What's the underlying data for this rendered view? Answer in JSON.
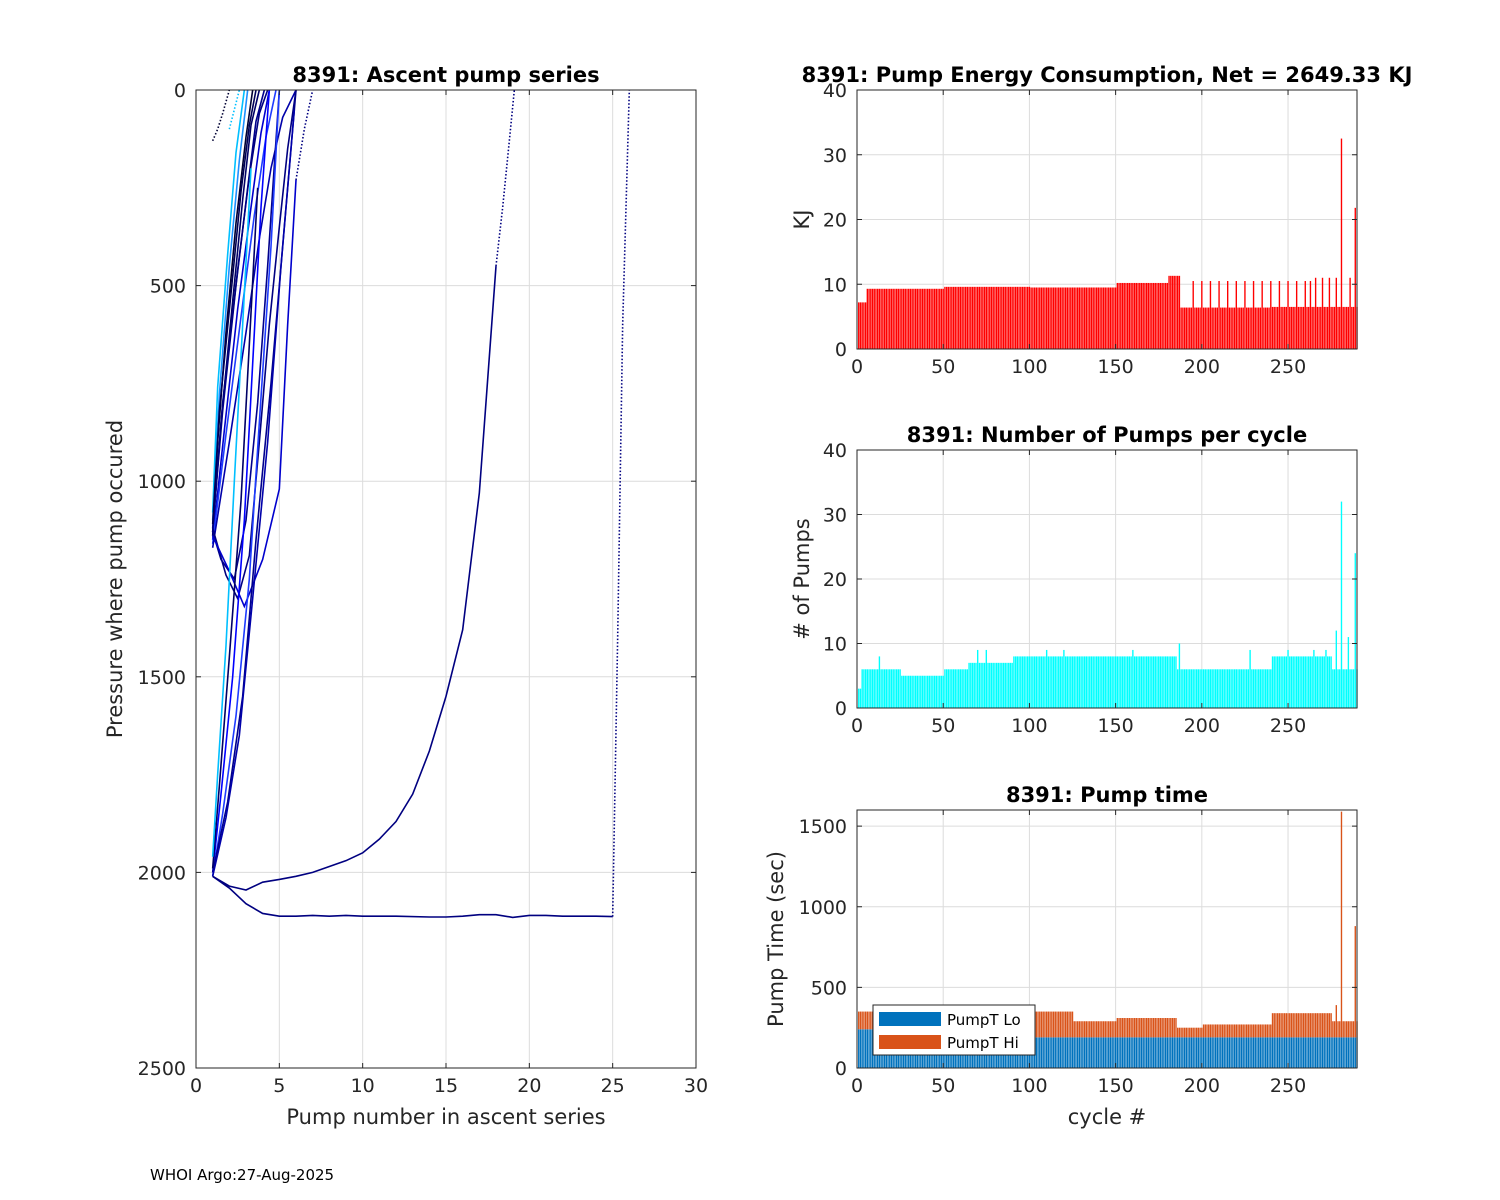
{
  "footer": "WHOI Argo:27-Aug-2025",
  "colors": {
    "energy_bar": "#ff0000",
    "pumps_bar": "#00ffff",
    "pumpt_lo": "#0072bd",
    "pumpt_hi": "#d95319",
    "grid": "#dcdcdc"
  },
  "chart_data": [
    {
      "id": "ascent",
      "type": "line",
      "title": "8391: Ascent pump series",
      "xlabel": "Pump number in ascent series",
      "ylabel": "Pressure where pump occured",
      "xlim": [
        0,
        30
      ],
      "ylim": [
        0,
        2500
      ],
      "y_reversed": true,
      "xticks": [
        0,
        5,
        10,
        15,
        20,
        25,
        30
      ],
      "yticks": [
        0,
        500,
        1000,
        1500,
        2000,
        2500
      ],
      "grid": true,
      "series": [
        {
          "name": "cluster-1",
          "color": "#000033",
          "x": [
            1,
            1.3,
            1.8,
            2.4,
            3.0,
            3.4
          ],
          "y": [
            1140,
            900,
            620,
            340,
            120,
            0
          ]
        },
        {
          "name": "cluster-2",
          "color": "#000066",
          "x": [
            1,
            1.5,
            2.2,
            2.8,
            3.3,
            3.8
          ],
          "y": [
            1130,
            850,
            540,
            280,
            90,
            0
          ]
        },
        {
          "name": "cluster-3",
          "color": "#00008b",
          "x": [
            1,
            1.6,
            2.4,
            3.1,
            3.6,
            4.1
          ],
          "y": [
            1120,
            820,
            500,
            250,
            80,
            0
          ]
        },
        {
          "name": "cluster-4",
          "color": "#0000cd",
          "x": [
            1,
            1.7,
            2.5,
            3.3,
            3.9,
            4.4
          ],
          "y": [
            1150,
            870,
            560,
            300,
            110,
            0
          ]
        },
        {
          "name": "cluster-5",
          "color": "#1e3cff",
          "x": [
            1,
            1.8,
            2.7,
            3.5,
            4.2,
            4.8
          ],
          "y": [
            1160,
            880,
            580,
            320,
            120,
            0
          ]
        },
        {
          "name": "cluster-6",
          "color": "#1e90ff",
          "x": [
            1,
            1.4,
            2.0,
            2.6,
            3.1
          ],
          "y": [
            1100,
            780,
            450,
            180,
            0
          ]
        },
        {
          "name": "cluster-7",
          "color": "#00bfff",
          "x": [
            1,
            1.3,
            1.9,
            2.4,
            2.9
          ],
          "y": [
            1080,
            760,
            420,
            160,
            0
          ]
        },
        {
          "name": "cluster-8",
          "color": "#0000aa",
          "x": [
            1,
            2.0,
            3.0,
            3.8,
            4.5,
            5.2,
            6.0
          ],
          "y": [
            1170,
            900,
            620,
            380,
            200,
            70,
            0
          ]
        },
        {
          "name": "cluster-9",
          "color": "#000080",
          "x": [
            1,
            1.6,
            2.5,
            3.2,
            3.8,
            4.3
          ],
          "y": [
            1130,
            800,
            460,
            220,
            60,
            0
          ]
        },
        {
          "name": "cluster-10",
          "color": "#000055",
          "x": [
            1,
            1.4,
            2.1,
            2.7,
            3.2,
            3.6
          ],
          "y": [
            1110,
            820,
            520,
            260,
            90,
            0
          ]
        },
        {
          "name": "dip-1",
          "color": "#000080",
          "x": [
            1,
            1.8,
            2.5,
            3.2,
            3.8,
            4.4,
            5.0,
            5.5,
            6.0
          ],
          "y": [
            1120,
            1240,
            1300,
            1190,
            900,
            600,
            350,
            150,
            0
          ]
        },
        {
          "name": "dip-2",
          "color": "#00008b",
          "x": [
            1,
            1.5,
            2.3,
            3.0,
            3.7,
            4.3,
            5.0
          ],
          "y": [
            1130,
            1200,
            1250,
            1100,
            800,
            450,
            0
          ]
        },
        {
          "name": "dip-3",
          "color": "#0000cd",
          "x": [
            1,
            2.0,
            2.9,
            4.0,
            5.0,
            5.5,
            6.0
          ],
          "y": [
            1140,
            1230,
            1320,
            1200,
            1020,
            600,
            230
          ]
        },
        {
          "name": "deep-1",
          "color": "#0000ff",
          "x": [
            1,
            1.5,
            2.2,
            2.9,
            3.4,
            3.9,
            4.4
          ],
          "y": [
            2000,
            1800,
            1500,
            1100,
            700,
            300,
            0
          ]
        },
        {
          "name": "deep-2",
          "color": "#1e3cff",
          "x": [
            1,
            1.6,
            2.4,
            3.2,
            3.8,
            4.5,
            5.0
          ],
          "y": [
            2010,
            1850,
            1600,
            1250,
            850,
            400,
            0
          ]
        },
        {
          "name": "deep-3",
          "color": "#00008b",
          "x": [
            1,
            1.9,
            2.8,
            3.6,
            4.5,
            5.3,
            6.0
          ],
          "y": [
            2000,
            1820,
            1550,
            1150,
            750,
            350,
            0
          ]
        },
        {
          "name": "deep-4",
          "color": "#000066",
          "x": [
            1,
            1.4,
            2.0,
            2.7,
            3.2,
            3.7
          ],
          "y": [
            1990,
            1780,
            1450,
            1050,
            650,
            250
          ]
        },
        {
          "name": "deep-5",
          "color": "#00bfff",
          "x": [
            1,
            1.3,
            1.8,
            2.3,
            2.8,
            3.3
          ],
          "y": [
            1960,
            1750,
            1420,
            1000,
            600,
            200
          ]
        },
        {
          "name": "deep-6",
          "color": "#0000aa",
          "x": [
            1,
            1.8,
            2.6,
            3.4,
            4.3,
            5.1,
            5.9
          ],
          "y": [
            2010,
            1860,
            1650,
            1300,
            900,
            450,
            50
          ]
        },
        {
          "name": "long-ascent-18",
          "color": "#000080",
          "x": [
            1,
            2,
            3,
            4,
            5,
            6,
            7,
            8,
            9,
            10,
            11,
            12,
            13,
            14,
            15,
            16,
            17,
            18
          ],
          "y": [
            2010,
            2035,
            2045,
            2025,
            2018,
            2010,
            2000,
            1985,
            1970,
            1950,
            1915,
            1870,
            1800,
            1690,
            1550,
            1380,
            1030,
            450
          ]
        },
        {
          "name": "long-ascent-25",
          "color": "#000080",
          "x": [
            1,
            2,
            3,
            4,
            5,
            6,
            7,
            8,
            9,
            10,
            12,
            14,
            15,
            16,
            17,
            18,
            19,
            20,
            21,
            22,
            23,
            24,
            25
          ],
          "y": [
            2010,
            2040,
            2080,
            2105,
            2112,
            2112,
            2110,
            2112,
            2110,
            2112,
            2112,
            2114,
            2114,
            2112,
            2108,
            2108,
            2115,
            2110,
            2110,
            2112,
            2112,
            2112,
            2113
          ]
        }
      ],
      "dotted_series": [
        {
          "name": "dotted-1",
          "color": "#000080",
          "x": [
            18,
            18.4,
            18.8,
            19.1
          ],
          "y": [
            450,
            300,
            130,
            0
          ]
        },
        {
          "name": "dotted-2",
          "color": "#000080",
          "x": [
            25,
            25.3,
            25.6,
            26.0
          ],
          "y": [
            2113,
            1400,
            600,
            0
          ]
        },
        {
          "name": "dotted-3",
          "color": "#000033",
          "x": [
            1,
            1.3,
            1.6,
            2.0
          ],
          "y": [
            130,
            100,
            60,
            0
          ]
        },
        {
          "name": "dotted-4",
          "color": "#00bfff",
          "x": [
            2.0,
            2.3,
            2.6
          ],
          "y": [
            100,
            50,
            0
          ]
        },
        {
          "name": "dotted-5",
          "color": "#000080",
          "x": [
            6.0,
            6.5,
            7.0
          ],
          "y": [
            230,
            100,
            0
          ]
        }
      ]
    },
    {
      "id": "energy",
      "type": "bar",
      "title": "8391: Pump Energy Consumption,  Net = 2649.33 KJ",
      "xlabel": "",
      "ylabel": "KJ",
      "xlim": [
        0,
        290
      ],
      "ylim": [
        0,
        40
      ],
      "xticks": [
        0,
        50,
        100,
        150,
        200,
        250
      ],
      "yticks": [
        0,
        10,
        20,
        30,
        40
      ],
      "grid": true,
      "color": "#ff0000",
      "bar_segments": [
        {
          "from": 1,
          "to": 5,
          "value": 7.2
        },
        {
          "from": 6,
          "to": 50,
          "value": 9.3
        },
        {
          "from": 51,
          "to": 100,
          "value": 9.6
        },
        {
          "from": 101,
          "to": 150,
          "value": 9.5
        },
        {
          "from": 151,
          "to": 180,
          "value": 10.2
        },
        {
          "from": 181,
          "to": 187,
          "value": 11.3
        },
        {
          "from": 188,
          "to": 240,
          "value": 6.4
        },
        {
          "from": 241,
          "to": 290,
          "value": 6.5
        }
      ],
      "spikes": [
        {
          "x": 195,
          "value": 10.5
        },
        {
          "x": 200,
          "value": 10.5
        },
        {
          "x": 205,
          "value": 10.5
        },
        {
          "x": 210,
          "value": 10.5
        },
        {
          "x": 215,
          "value": 10.5
        },
        {
          "x": 220,
          "value": 10.5
        },
        {
          "x": 225,
          "value": 10.5
        },
        {
          "x": 230,
          "value": 10.5
        },
        {
          "x": 235,
          "value": 10.5
        },
        {
          "x": 240,
          "value": 10.5
        },
        {
          "x": 245,
          "value": 10.5
        },
        {
          "x": 250,
          "value": 10.5
        },
        {
          "x": 255,
          "value": 10.5
        },
        {
          "x": 260,
          "value": 10.5
        },
        {
          "x": 263,
          "value": 10.5
        },
        {
          "x": 266,
          "value": 11
        },
        {
          "x": 270,
          "value": 11
        },
        {
          "x": 274,
          "value": 11
        },
        {
          "x": 278,
          "value": 11
        },
        {
          "x": 281,
          "value": 32.5
        },
        {
          "x": 286,
          "value": 11
        },
        {
          "x": 289,
          "value": 21.8
        }
      ]
    },
    {
      "id": "pumps",
      "type": "bar",
      "title": "8391: Number of Pumps per cycle",
      "xlabel": "",
      "ylabel": "# of Pumps",
      "xlim": [
        0,
        290
      ],
      "ylim": [
        0,
        40
      ],
      "xticks": [
        0,
        50,
        100,
        150,
        200,
        250
      ],
      "yticks": [
        0,
        10,
        20,
        30,
        40
      ],
      "grid": true,
      "color": "#00ffff",
      "bar_segments": [
        {
          "from": 1,
          "to": 2,
          "value": 3
        },
        {
          "from": 3,
          "to": 25,
          "value": 6
        },
        {
          "from": 26,
          "to": 50,
          "value": 5
        },
        {
          "from": 51,
          "to": 64,
          "value": 6
        },
        {
          "from": 65,
          "to": 90,
          "value": 7
        },
        {
          "from": 91,
          "to": 150,
          "value": 8
        },
        {
          "from": 151,
          "to": 185,
          "value": 8
        },
        {
          "from": 186,
          "to": 240,
          "value": 6
        },
        {
          "from": 241,
          "to": 275,
          "value": 8
        },
        {
          "from": 276,
          "to": 290,
          "value": 6
        }
      ],
      "spikes": [
        {
          "x": 13,
          "value": 8
        },
        {
          "x": 70,
          "value": 9
        },
        {
          "x": 75,
          "value": 9
        },
        {
          "x": 110,
          "value": 9
        },
        {
          "x": 120,
          "value": 9
        },
        {
          "x": 160,
          "value": 9
        },
        {
          "x": 187,
          "value": 10
        },
        {
          "x": 228,
          "value": 9
        },
        {
          "x": 250,
          "value": 9
        },
        {
          "x": 265,
          "value": 9
        },
        {
          "x": 272,
          "value": 9
        },
        {
          "x": 278,
          "value": 12
        },
        {
          "x": 281,
          "value": 32
        },
        {
          "x": 285,
          "value": 11
        },
        {
          "x": 289,
          "value": 24
        }
      ]
    },
    {
      "id": "pumptime",
      "type": "stacked-bar",
      "title": "8391: Pump time",
      "xlabel": "cycle #",
      "ylabel": "Pump Time (sec)",
      "xlim": [
        0,
        290
      ],
      "ylim": [
        0,
        1600
      ],
      "xticks": [
        0,
        50,
        100,
        150,
        200,
        250
      ],
      "yticks": [
        0,
        500,
        1000,
        1500
      ],
      "grid": true,
      "legend": {
        "position": "bottom-left",
        "entries": [
          "PumpT Lo",
          "PumpT Hi"
        ]
      },
      "lo_segments": [
        {
          "from": 1,
          "to": 100,
          "value": 240
        },
        {
          "from": 101,
          "to": 290,
          "value": 190
        }
      ],
      "hi_segments": [
        {
          "from": 1,
          "to": 10,
          "value": 110
        },
        {
          "from": 11,
          "to": 100,
          "value": 60
        },
        {
          "from": 101,
          "to": 125,
          "value": 160
        },
        {
          "from": 126,
          "to": 150,
          "value": 100
        },
        {
          "from": 151,
          "to": 185,
          "value": 120
        },
        {
          "from": 186,
          "to": 200,
          "value": 60
        },
        {
          "from": 201,
          "to": 240,
          "value": 80
        },
        {
          "from": 241,
          "to": 275,
          "value": 150
        },
        {
          "from": 276,
          "to": 290,
          "value": 100
        }
      ],
      "hi_spikes": [
        {
          "x": 281,
          "value": 1400
        },
        {
          "x": 289,
          "value": 690
        },
        {
          "x": 278,
          "value": 200
        }
      ]
    }
  ]
}
